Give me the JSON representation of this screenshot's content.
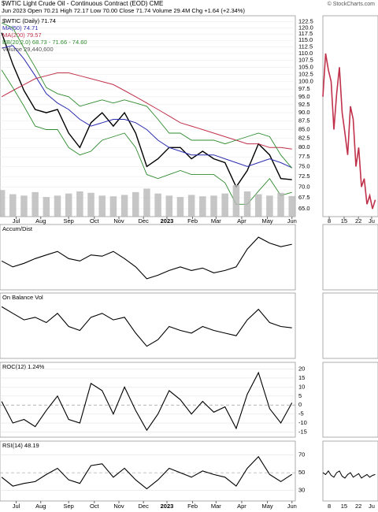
{
  "chart_data": [
    {
      "type": "line",
      "panel": "price",
      "title": "$WTIC Light Crude Oil - Continuous Contract (EOD) CME",
      "watermark": "© StockCharts.com",
      "subtitle": "Jun 2023  Open 70.21 High 72.17 Low 70.00 Close 71.74 Volume 29.4M Chg +1.64 (+2.34%)",
      "log_scale": true,
      "xlim": [
        -0.15,
        26.3
      ],
      "ylim": [
        63.3,
        125
      ],
      "yticks": [
        122.5,
        {
          "value": 120,
          "label": "120.0"
        },
        117.5,
        {
          "value": 115,
          "label": "115.0"
        },
        112.5,
        {
          "value": 110,
          "label": "110.0"
        },
        107.5,
        {
          "value": 105,
          "label": "105.0"
        },
        102.5,
        {
          "value": 100,
          "label": "100.0"
        },
        97.5,
        {
          "value": 95,
          "label": "95.0"
        },
        92.5,
        {
          "value": 90,
          "label": "90.0"
        },
        87.5,
        {
          "value": 85,
          "label": "85.0"
        },
        82.5,
        {
          "value": 80,
          "label": "80.0"
        },
        77.5,
        {
          "value": 75,
          "label": "75.0"
        },
        72.5,
        {
          "value": 70,
          "label": "70.0"
        },
        67.5,
        {
          "value": 65,
          "label": "65.0"
        }
      ],
      "xticks": [
        {
          "value": 1.3,
          "label": "Jul"
        },
        {
          "value": 3.5,
          "label": "Aug"
        },
        {
          "value": 6.0,
          "label": "Sep"
        },
        {
          "value": 8.3,
          "label": "Oct"
        },
        {
          "value": 10.5,
          "label": "Nov"
        },
        {
          "value": 12.7,
          "label": "Dec"
        },
        {
          "value": 14.8,
          "label": "2023"
        },
        {
          "value": 17.1,
          "label": "Feb"
        },
        {
          "value": 19.2,
          "label": "Mar"
        },
        {
          "value": 21.5,
          "label": "Apr"
        },
        {
          "value": 23.8,
          "label": "May"
        },
        {
          "value": 26.0,
          "label": "Jun"
        }
      ],
      "series": [
        {
          "name": "$WTIC (Daily) 71.74",
          "color": "#000000",
          "values": [
            118,
            106,
            97,
            91,
            90,
            91,
            84,
            80,
            87,
            90,
            86,
            90,
            84,
            75,
            77,
            80,
            80,
            77,
            79,
            77,
            76,
            70,
            74,
            81,
            78,
            72,
            71.74
          ]
        },
        {
          "name": "MA(50) 74.71",
          "color": "#2b2bb0",
          "values": [
            112,
            113,
            108,
            102,
            96,
            93,
            91,
            88,
            86,
            87,
            88,
            88,
            87,
            85,
            82,
            80,
            79,
            78,
            78,
            78,
            77,
            76,
            75,
            76,
            77,
            76,
            74.71
          ]
        },
        {
          "name": "MA(200) 79.57",
          "color": "#c0314b",
          "values": [
            95,
            97,
            99,
            101,
            102,
            103,
            103,
            102,
            101,
            100,
            99,
            97,
            95,
            93,
            91,
            89,
            87,
            86,
            85,
            84,
            83,
            82,
            81,
            81,
            80,
            80,
            79.57
          ]
        },
        {
          "name": "BB(20,2.0) 68.73 - 71.66 - 74.60",
          "color": "#2e8b2e",
          "upper": [
            122,
            120,
            112,
            105,
            98,
            96,
            95,
            92,
            93,
            94,
            93,
            94,
            93,
            92,
            88,
            84,
            84,
            82,
            82,
            82,
            81,
            82,
            83,
            84,
            83,
            78,
            74.6
          ],
          "lower": [
            104,
            98,
            92,
            86,
            85,
            85,
            80,
            78,
            79,
            82,
            83,
            84,
            80,
            73,
            72,
            73,
            74,
            73,
            73,
            73,
            71,
            66,
            66,
            69,
            72,
            68,
            68.73
          ]
        },
        {
          "name": "Volume 29,440,600",
          "color": "#b8b8b8",
          "volume": true,
          "values": [
            38,
            32,
            30,
            35,
            28,
            30,
            33,
            36,
            34,
            30,
            29,
            31,
            35,
            40,
            33,
            30,
            28,
            31,
            29,
            30,
            33,
            45,
            36,
            32,
            30,
            34,
            29.4
          ]
        }
      ]
    },
    {
      "type": "line",
      "panel": "accum",
      "title": "Accum/Dist",
      "color": "#000000",
      "values": [
        50,
        45,
        48,
        52,
        55,
        58,
        52,
        50,
        55,
        54,
        58,
        52,
        45,
        35,
        38,
        42,
        45,
        42,
        44,
        40,
        42,
        45,
        60,
        70,
        65,
        62,
        64
      ]
    },
    {
      "type": "line",
      "panel": "obv",
      "title": "On Balance Vol",
      "color": "#000000",
      "values": [
        60,
        55,
        50,
        52,
        48,
        55,
        45,
        42,
        52,
        55,
        50,
        52,
        40,
        30,
        35,
        45,
        42,
        40,
        45,
        42,
        40,
        38,
        50,
        58,
        48,
        45,
        44
      ]
    },
    {
      "type": "line",
      "panel": "roc",
      "title": "ROC(12) 1.24%",
      "color": "#000000",
      "ylim": [
        -17,
        22
      ],
      "yticks": [
        20,
        15,
        10,
        5,
        0,
        -5,
        -10,
        -15
      ],
      "values": [
        2,
        -10,
        -8,
        -12,
        -3,
        5,
        -8,
        -10,
        12,
        8,
        -5,
        10,
        -3,
        -14,
        -5,
        8,
        3,
        -5,
        2,
        -4,
        -1,
        -13,
        6,
        18,
        -2,
        -10,
        1.24
      ]
    },
    {
      "type": "line",
      "panel": "rsi",
      "title": "RSI(14) 48.19",
      "color": "#000000",
      "ylim": [
        20,
        82
      ],
      "yticks": [
        70,
        50,
        30
      ],
      "xticks": [
        {
          "value": 1.3,
          "label": "Jul"
        },
        {
          "value": 3.5,
          "label": "Aug"
        },
        {
          "value": 6.0,
          "label": "Sep"
        },
        {
          "value": 8.3,
          "label": "Oct"
        },
        {
          "value": 10.5,
          "label": "Nov"
        },
        {
          "value": 12.7,
          "label": "Dec"
        },
        {
          "value": 14.8,
          "label": "2023"
        },
        {
          "value": 17.1,
          "label": "Feb"
        },
        {
          "value": 19.2,
          "label": "Mar"
        },
        {
          "value": 21.5,
          "label": "Apr"
        },
        {
          "value": 23.8,
          "label": "May"
        },
        {
          "value": 26.0,
          "label": "Jun"
        }
      ],
      "values": [
        45,
        35,
        38,
        40,
        48,
        55,
        42,
        38,
        58,
        60,
        45,
        55,
        42,
        32,
        42,
        55,
        50,
        45,
        52,
        48,
        45,
        35,
        55,
        68,
        48,
        40,
        48.19
      ]
    },
    {
      "type": "line",
      "panel": "zoom",
      "color": "#c0314b",
      "log_scale": true,
      "xlim": [
        0,
        20
      ],
      "ylim": [
        63.3,
        125
      ],
      "xticks": [
        {
          "value": 2.3,
          "label": "8"
        },
        {
          "value": 7.7,
          "label": "15"
        },
        {
          "value": 12.9,
          "label": "22"
        },
        {
          "value": 17.7,
          "label": "Ju"
        }
      ],
      "values": [
        95,
        110,
        104,
        100,
        85,
        96,
        105,
        90,
        84,
        78,
        92,
        88,
        75,
        80,
        70,
        72,
        66,
        68,
        65,
        67
      ],
      "rsi_ylim": [
        20,
        82
      ],
      "rsi_values": [
        50,
        48,
        52,
        47,
        45,
        50,
        52,
        46,
        44,
        48,
        50,
        45,
        47,
        49,
        44,
        46,
        48,
        45,
        47,
        48
      ]
    }
  ]
}
